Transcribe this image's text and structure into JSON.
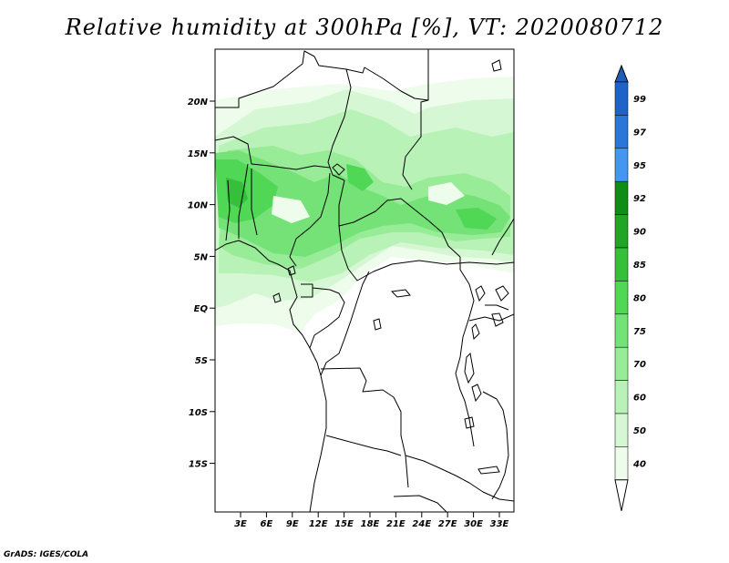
{
  "title": "Relative humidity at 300hPa [%], VT: 2020080712",
  "credit": "GrADS: IGES/COLA",
  "map": {
    "y_axis_labels": [
      "20N",
      "15N",
      "10N",
      "5N",
      "EQ",
      "5S",
      "10S",
      "15S"
    ],
    "x_axis_labels": [
      "3E",
      "6E",
      "9E",
      "12E",
      "15E",
      "18E",
      "21E",
      "24E",
      "27E",
      "30E",
      "33E"
    ],
    "colors": {
      "land_outline": "#000000",
      "background": "#ffffff"
    }
  },
  "legend": {
    "labels": [
      "99",
      "97",
      "95",
      "92",
      "90",
      "85",
      "80",
      "75",
      "70",
      "60",
      "50",
      "40"
    ],
    "bins": [
      {
        "color": "#1f62c9"
      },
      {
        "color": "#2b76d8"
      },
      {
        "color": "#4496ee"
      },
      {
        "color": "#0f8d14"
      },
      {
        "color": "#22a427"
      },
      {
        "color": "#35bf3a"
      },
      {
        "color": "#4fd755"
      },
      {
        "color": "#74e276"
      },
      {
        "color": "#98ec98"
      },
      {
        "color": "#b9f2b7"
      },
      {
        "color": "#d6f7d3"
      },
      {
        "color": "#eefcec"
      }
    ],
    "top_arrow_color": "#1e5fb4",
    "bottom_arrow_color": "#ffffff"
  }
}
